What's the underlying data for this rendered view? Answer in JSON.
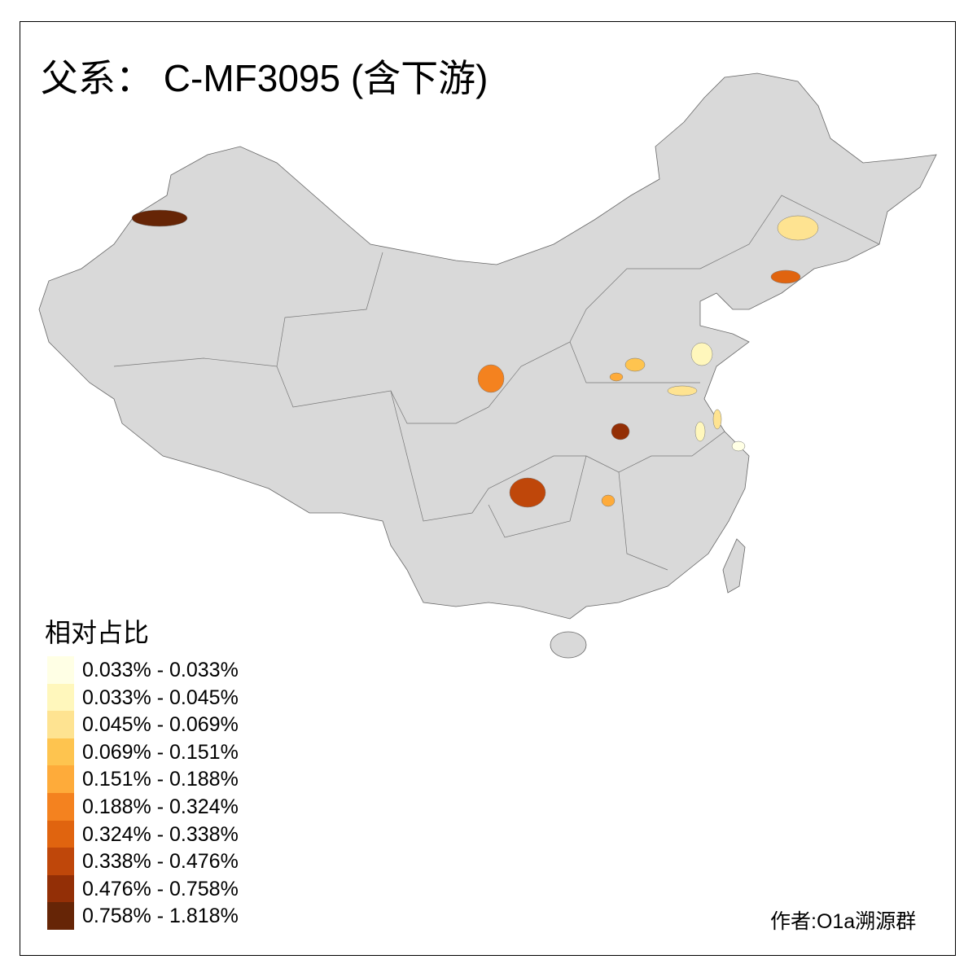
{
  "title": "父系： C-MF3095 (含下游)",
  "legend": {
    "title": "相对占比",
    "classes": [
      {
        "label": "0.033% - 0.033%",
        "color": "#ffffe5"
      },
      {
        "label": "0.033% - 0.045%",
        "color": "#fff7bc"
      },
      {
        "label": "0.045% - 0.069%",
        "color": "#fee391"
      },
      {
        "label": "0.069% - 0.151%",
        "color": "#fec44f"
      },
      {
        "label": "0.151% - 0.188%",
        "color": "#feab3a"
      },
      {
        "label": "0.188% - 0.324%",
        "color": "#f4821f"
      },
      {
        "label": "0.324% - 0.338%",
        "color": "#e0640f"
      },
      {
        "label": "0.338% - 0.476%",
        "color": "#bf470a"
      },
      {
        "label": "0.476% - 0.758%",
        "color": "#932f06"
      },
      {
        "label": "0.758% - 1.818%",
        "color": "#662506"
      }
    ]
  },
  "base_color": "#d9d9d9",
  "credit": "作者:O1a溯源群"
}
